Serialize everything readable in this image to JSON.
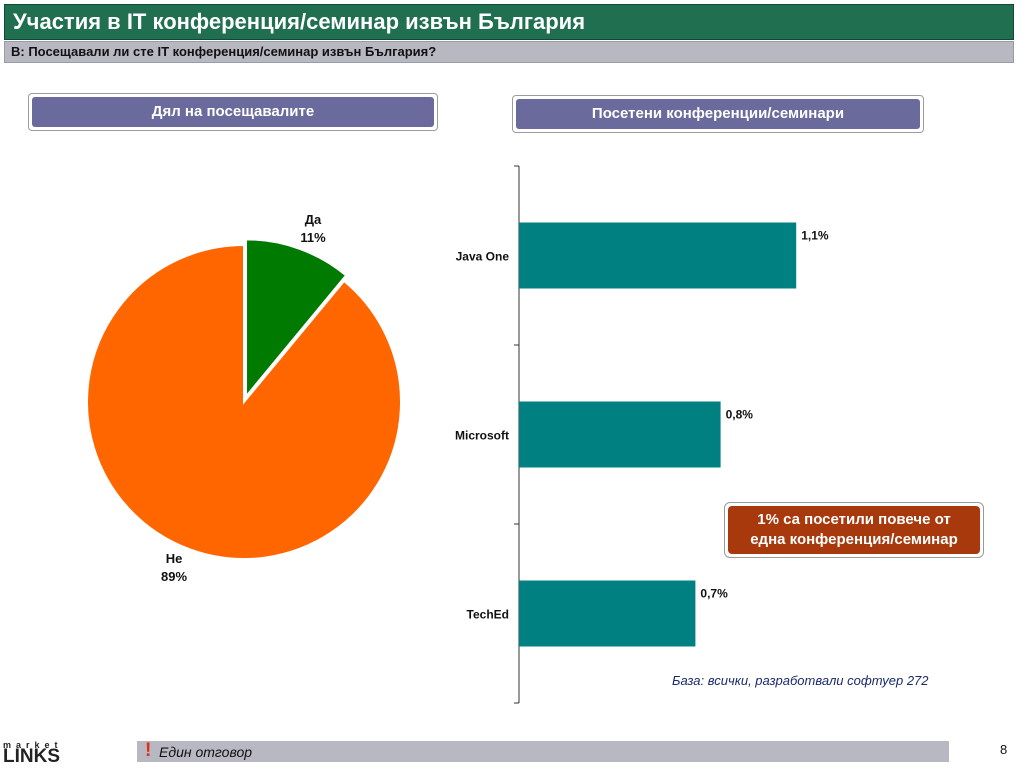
{
  "title": "Участия в IT конференция/семинар извън България",
  "question": "В: Посещавали ли сте IT конференция/семинар извън България?",
  "left_header": "Дял на посещавалите",
  "right_header": "Посетени конференции/семинари",
  "callout_line1": "1% са посетили повече от",
  "callout_line2": "една конференция/семинар",
  "base_note": "База: всички, разработвали софтуер 272",
  "footer_note": "Един отговор",
  "footer_mark": "!",
  "page_number": "8",
  "logo_small": "market",
  "logo_big": "LINKS",
  "colors": {
    "title_bg": "#1f6f50",
    "pie_yes": "#007a00",
    "pie_no": "#ff6600",
    "bar": "#008080",
    "callout_bg": "#a8390c",
    "header_bg": "#6a6a9c"
  },
  "chart_data": [
    {
      "type": "pie",
      "slices": [
        {
          "label": "Да",
          "value": 11,
          "value_label": "11%",
          "color": "#007a00"
        },
        {
          "label": "Не",
          "value": 89,
          "value_label": "89%",
          "color": "#ff6600"
        }
      ]
    },
    {
      "type": "bar",
      "orientation": "horizontal",
      "categories": [
        "Java One",
        "Microsoft",
        "TechEd"
      ],
      "values": [
        1.1,
        0.8,
        0.7
      ],
      "value_labels": [
        "1,1%",
        "0,8%",
        "0,7%"
      ],
      "color": "#008080",
      "xlim": [
        0,
        1.5
      ]
    }
  ]
}
